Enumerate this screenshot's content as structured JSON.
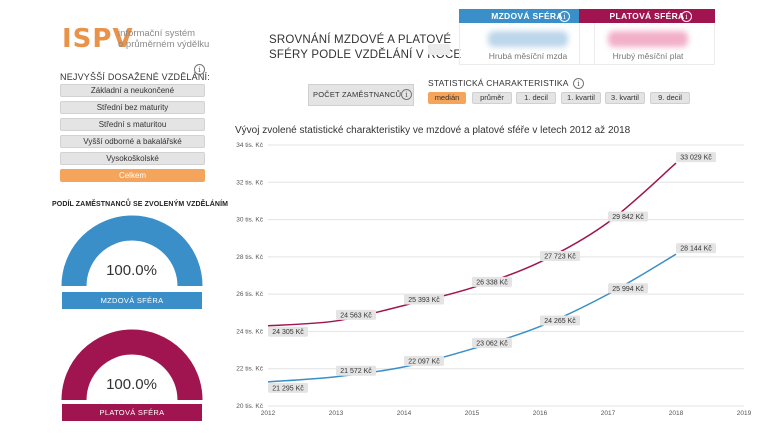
{
  "logo": {
    "text": "ISPV",
    "subtitle_line1": "informační systém",
    "subtitle_line2": "o průměrném výdělku"
  },
  "education": {
    "title": "NEJVYŠŠÍ DOSAŽENÉ VZDĚLÁNÍ:",
    "options": [
      {
        "label": "Základní a neukončené",
        "active": false
      },
      {
        "label": "Střední bez maturity",
        "active": false
      },
      {
        "label": "Střední s maturitou",
        "active": false
      },
      {
        "label": "Vyšší odborné a bakalářské",
        "active": false
      },
      {
        "label": "Vysokoškolské",
        "active": false
      },
      {
        "label": "Celkem",
        "active": true
      }
    ]
  },
  "share": {
    "title": "PODÍL ZAMĚSTNANCŮ SE ZVOLENÝM VZDĚLÁNÍM",
    "wage": {
      "value_text": "100.0%",
      "fraction": 1.0,
      "label": "MZDOVÁ SFÉRA",
      "color": "#3a8fc8"
    },
    "salary": {
      "value_text": "100.0%",
      "fraction": 1.0,
      "label": "PLATOVÁ SFÉRA",
      "color": "#a0154f"
    }
  },
  "header": {
    "title_line1": "SROVNÁNÍ MZDOVÉ A PLATOVÉ",
    "title_line2": "SFÉRY PODLE VZDĚLÁNÍ V ROCE"
  },
  "cards": {
    "wage": {
      "title": "MZDOVÁ SFÉRA",
      "footer": "Hrubá měsíční mzda",
      "color": "#3a8fc8"
    },
    "salary": {
      "title": "PLATOVÁ SFÉRA",
      "footer": "Hrubý měsíční plat",
      "color": "#a0154f"
    }
  },
  "count_button": {
    "label": "POČET ZAMĚSTNANCŮ"
  },
  "stats": {
    "title": "STATISTICKÁ CHARAKTERISTIKA",
    "options": [
      {
        "label": "medián",
        "active": true
      },
      {
        "label": "průměr",
        "active": false
      },
      {
        "label": "1. decil",
        "active": false
      },
      {
        "label": "1. kvartil",
        "active": false
      },
      {
        "label": "3. kvartil",
        "active": false
      },
      {
        "label": "9. decil",
        "active": false
      }
    ]
  },
  "chart_title": "Vývoj zvolené statistické charakteristiky ve mzdové a platové sféře v letech 2012 až 2018",
  "chart_data": {
    "type": "line",
    "x": [
      2012,
      2013,
      2014,
      2015,
      2016,
      2017,
      2018
    ],
    "xticks": [
      "2012",
      "2013",
      "2014",
      "2015",
      "2016",
      "2017",
      "2018",
      "2019"
    ],
    "xlim": [
      2012,
      2019
    ],
    "ylim": [
      20000,
      34000
    ],
    "yticks": [
      "20 tis. Kč",
      "22 tis. Kč",
      "24 tis. Kč",
      "26 tis. Kč",
      "28 tis. Kč",
      "30 tis. Kč",
      "32 tis. Kč",
      "34 tis. Kč"
    ],
    "grid": true,
    "series": [
      {
        "key": "salary",
        "values": [
          24305,
          24563,
          25393,
          26338,
          27723,
          29842,
          33029
        ],
        "labels": [
          "24 305 Kč",
          "24 563 Kč",
          "25 393 Kč",
          "26 338 Kč",
          "27 723 Kč",
          "29 842 Kč",
          "33 029 Kč"
        ],
        "color": "#a0154f"
      },
      {
        "key": "wage",
        "values": [
          21295,
          21572,
          22097,
          23062,
          24265,
          25994,
          28144
        ],
        "labels": [
          "21 295 Kč",
          "21 572 Kč",
          "22 097 Kč",
          "23 062 Kč",
          "24 265 Kč",
          "25 994 Kč",
          "28 144 Kč"
        ],
        "color": "#3a8fc8"
      }
    ]
  }
}
